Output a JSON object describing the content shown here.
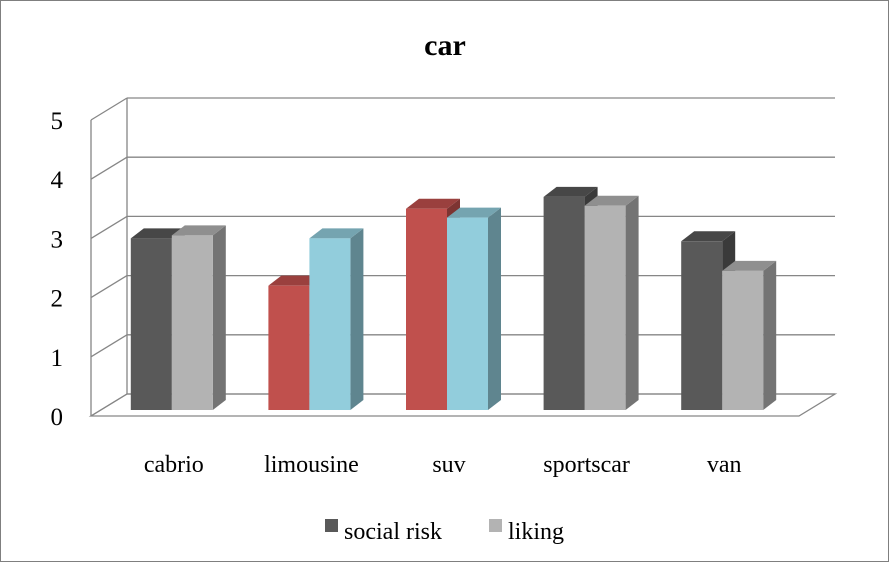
{
  "chart_data": {
    "type": "bar",
    "title": "car",
    "categories": [
      "cabrio",
      "limousine",
      "suv",
      "sportscar",
      "van"
    ],
    "series": [
      {
        "name": "social risk",
        "values": [
          2.9,
          2.1,
          3.4,
          3.6,
          2.85
        ]
      },
      {
        "name": "liking",
        "values": [
          2.95,
          2.9,
          3.25,
          3.45,
          2.35
        ]
      }
    ],
    "ylim": [
      0,
      5
    ],
    "yticks": [
      "0",
      "1",
      "2",
      "3",
      "4",
      "5"
    ],
    "grid": true,
    "legend_position": "bottom",
    "style": "3d-clustered-column",
    "colors": {
      "social_risk_default": "#595959",
      "liking_default": "#b3b3b3",
      "social_risk_highlight": "#c0504d",
      "liking_highlight": "#92cddc",
      "grid": "#868686"
    },
    "highlighted_categories": [
      "limousine",
      "suv"
    ]
  }
}
